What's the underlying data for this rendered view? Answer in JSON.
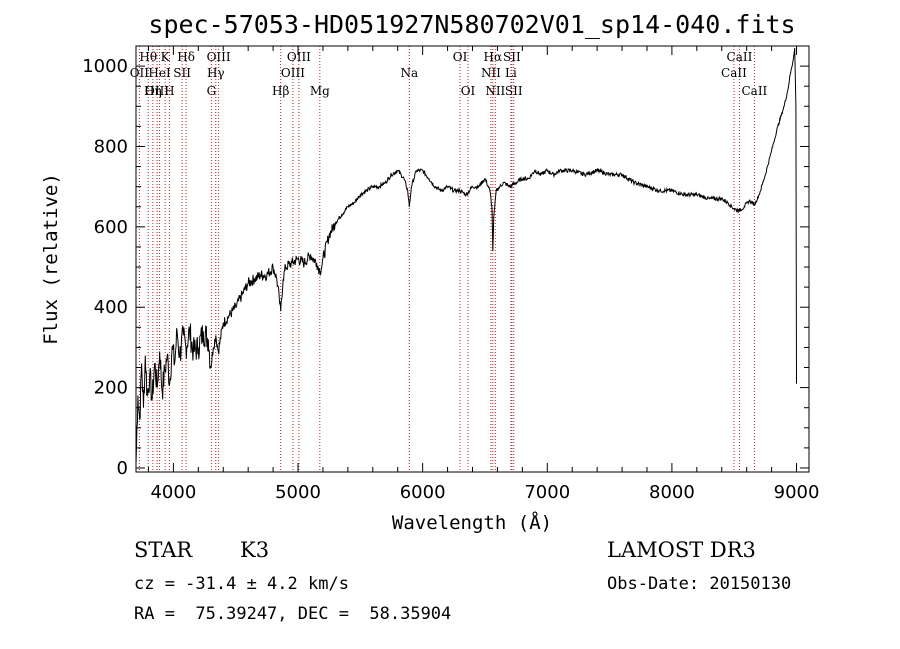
{
  "chart_data": {
    "type": "line",
    "title": "spec-57053-HD051927N580702V01_sp14-040.fits",
    "xlabel": "Wavelength (Å)",
    "ylabel": "Flux (relative)",
    "xlim": [
      3700,
      9100
    ],
    "ylim": [
      -10,
      1050
    ],
    "xticks": [
      4000,
      5000,
      6000,
      7000,
      8000,
      9000
    ],
    "yticks": [
      0,
      200,
      400,
      600,
      800,
      1000
    ],
    "grid": false,
    "line_color": "#000000",
    "marker_color": "#b22222",
    "series": [
      {
        "x": [
          3700,
          3715,
          3730,
          3745,
          3760,
          3775,
          3790,
          3810,
          3830,
          3850,
          3870,
          3890,
          3910,
          3930,
          3950,
          3970,
          3990,
          4010,
          4030,
          4050,
          4080,
          4100,
          4130,
          4160,
          4200,
          4240,
          4280,
          4300,
          4320,
          4340,
          4360,
          4400,
          4450,
          4500,
          4550,
          4600,
          4650,
          4700,
          4750,
          4800,
          4830,
          4850,
          4861,
          4880,
          4900,
          4950,
          5000,
          5050,
          5100,
          5150,
          5175,
          5190,
          5200,
          5250,
          5300,
          5350,
          5400,
          5450,
          5500,
          5550,
          5600,
          5650,
          5700,
          5750,
          5800,
          5850,
          5880,
          5893,
          5910,
          5950,
          6000,
          6050,
          6100,
          6150,
          6200,
          6250,
          6300,
          6350,
          6400,
          6450,
          6500,
          6540,
          6556,
          6563,
          6570,
          6590,
          6620,
          6650,
          6700,
          6750,
          6800,
          6850,
          6900,
          6950,
          7000,
          7050,
          7100,
          7200,
          7300,
          7400,
          7500,
          7600,
          7700,
          7800,
          7900,
          8000,
          8100,
          8200,
          8300,
          8400,
          8450,
          8498,
          8540,
          8580,
          8620,
          8662,
          8700,
          8750,
          8800,
          8850,
          8900,
          8930,
          8950,
          8970,
          8985,
          8995,
          9000
        ],
        "y": [
          10,
          180,
          120,
          260,
          150,
          280,
          180,
          230,
          170,
          260,
          200,
          290,
          190,
          240,
          280,
          210,
          300,
          260,
          340,
          280,
          330,
          300,
          340,
          290,
          300,
          340,
          320,
          250,
          300,
          330,
          290,
          360,
          380,
          400,
          430,
          460,
          470,
          480,
          480,
          500,
          470,
          420,
          390,
          470,
          500,
          510,
          520,
          510,
          530,
          510,
          490,
          500,
          520,
          580,
          610,
          630,
          650,
          660,
          680,
          690,
          700,
          700,
          710,
          730,
          740,
          720,
          690,
          650,
          700,
          740,
          740,
          720,
          700,
          690,
          700,
          690,
          690,
          680,
          700,
          700,
          720,
          690,
          650,
          540,
          620,
          690,
          700,
          710,
          700,
          710,
          720,
          720,
          740,
          730,
          740,
          730,
          740,
          740,
          730,
          740,
          730,
          730,
          710,
          700,
          690,
          690,
          680,
          680,
          670,
          670,
          660,
          645,
          640,
          650,
          665,
          655,
          680,
          730,
          790,
          850,
          900,
          940,
          980,
          1010,
          1045,
          900,
          210
        ]
      }
    ],
    "spectral_lines": [
      {
        "label": "Hθ",
        "x": 3798,
        "row": 1
      },
      {
        "label": "OII",
        "x": 3727,
        "row": 2
      },
      {
        "label": "OIII",
        "x": 3869,
        "row": 3
      },
      {
        "label": "K",
        "x": 3934,
        "row": 1
      },
      {
        "label": "HeI",
        "x": 3889,
        "row": 2
      },
      {
        "label": "Hη",
        "x": 3835,
        "row": 3
      },
      {
        "label": "Hδ",
        "x": 4102,
        "row": 1
      },
      {
        "label": "SII",
        "x": 4070,
        "row": 2
      },
      {
        "label": "H",
        "x": 3968,
        "row": 3
      },
      {
        "label": "OIII",
        "x": 4363,
        "row": 1
      },
      {
        "label": "Hγ",
        "x": 4340,
        "row": 2
      },
      {
        "label": "G",
        "x": 4305,
        "row": 3
      },
      {
        "label": "OIII",
        "x": 5007,
        "row": 1
      },
      {
        "label": "OIII",
        "x": 4959,
        "row": 2
      },
      {
        "label": "Hβ",
        "x": 4861,
        "row": 3
      },
      {
        "label": "Mg",
        "x": 5175,
        "row": 3
      },
      {
        "label": "Na",
        "x": 5893,
        "row": 2
      },
      {
        "label": "OI",
        "x": 6300,
        "row": 1
      },
      {
        "label": "OI",
        "x": 6364,
        "row": 3
      },
      {
        "label": "Hα",
        "x": 6563,
        "row": 1
      },
      {
        "label": "NII",
        "x": 6548,
        "row": 2
      },
      {
        "label": "NII",
        "x": 6583,
        "row": 3
      },
      {
        "label": "SII",
        "x": 6716,
        "row": 1
      },
      {
        "label": "Li",
        "x": 6708,
        "row": 2
      },
      {
        "label": "SII",
        "x": 6731,
        "row": 3
      },
      {
        "label": "CaII",
        "x": 8542,
        "row": 1
      },
      {
        "label": "CaII",
        "x": 8498,
        "row": 2
      },
      {
        "label": "CaII",
        "x": 8662,
        "row": 3
      }
    ]
  },
  "info": {
    "object_type": "STAR",
    "spectral_class": "K3",
    "survey": "LAMOST DR3",
    "redshift": "cz = -31.4 ± 4.2 km/s",
    "obs_date": "Obs-Date: 20150130",
    "coordinates": "RA =  75.39247, DEC =  58.35904"
  }
}
